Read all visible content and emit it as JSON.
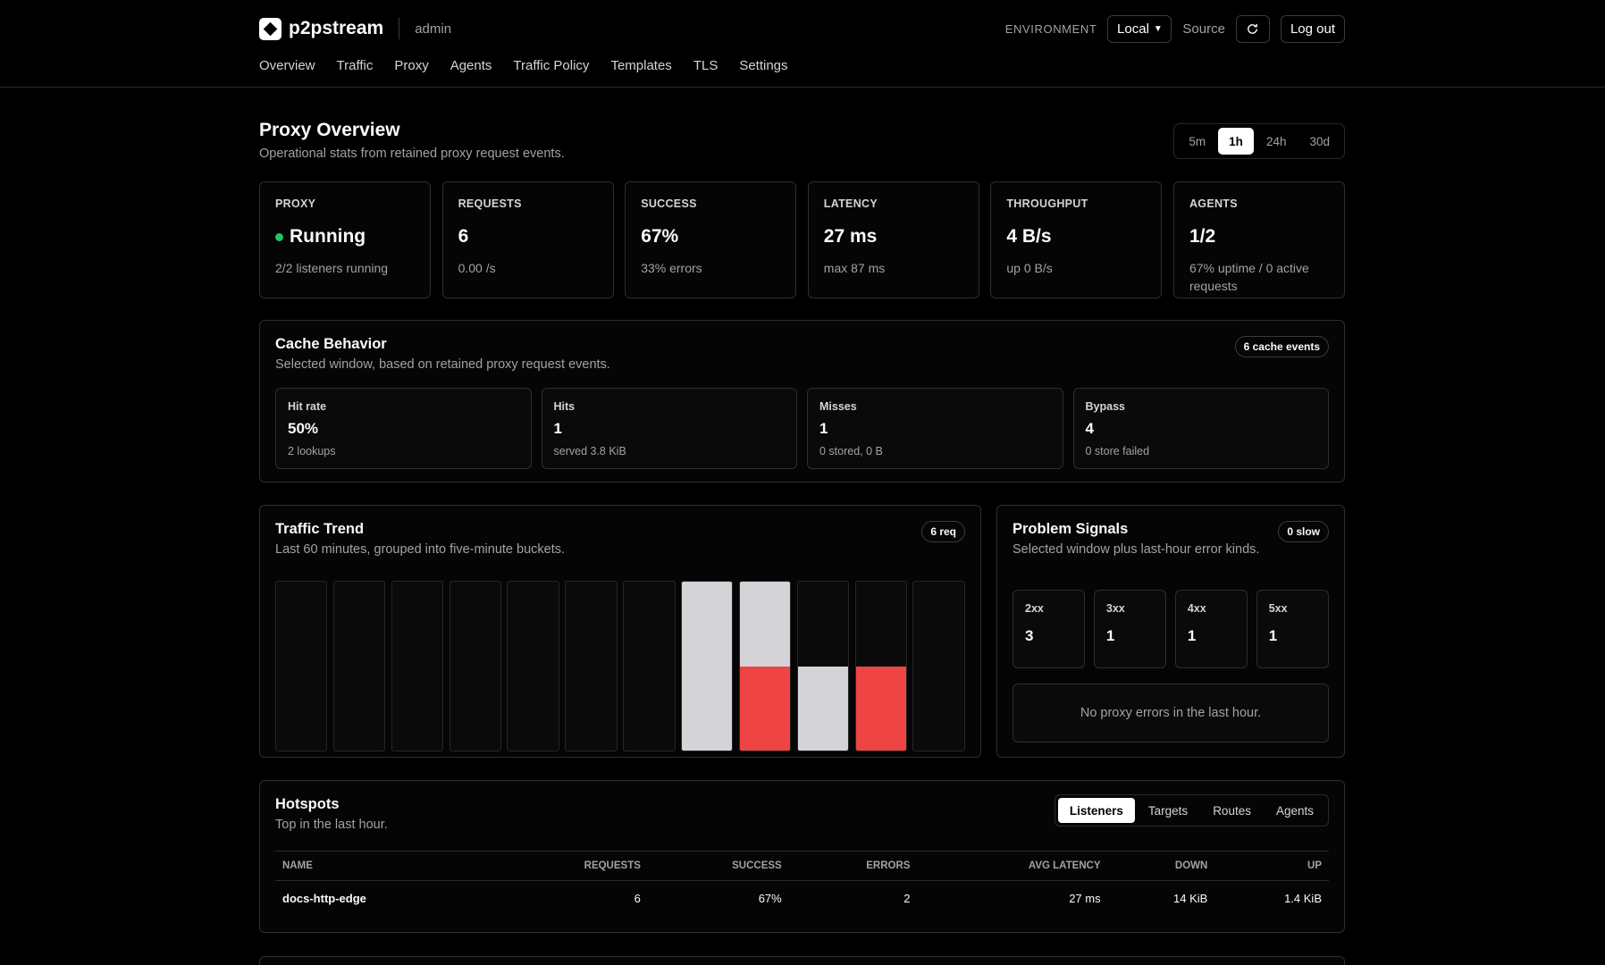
{
  "header": {
    "brand": "p2pstream",
    "user": "admin",
    "environment_label": "ENVIRONMENT",
    "environment": "Local",
    "source": "Source",
    "logout": "Log out"
  },
  "nav": [
    "Overview",
    "Traffic",
    "Proxy",
    "Agents",
    "Traffic Policy",
    "Templates",
    "TLS",
    "Settings"
  ],
  "page": {
    "title": "Proxy Overview",
    "subtitle": "Operational stats from retained proxy request events.",
    "ranges": [
      "5m",
      "1h",
      "24h",
      "30d"
    ]
  },
  "stats": [
    {
      "label": "PROXY",
      "value": "Running",
      "note": "2/2 listeners running"
    },
    {
      "label": "REQUESTS",
      "value": 6,
      "note": "0.00 /s"
    },
    {
      "label": "SUCCESS",
      "value": "67%",
      "note": "33% errors"
    },
    {
      "label": "LATENCY",
      "value": "27 ms",
      "note": "max 87 ms"
    },
    {
      "label": "THROUGHPUT",
      "value": "4 B/s",
      "note": "up 0 B/s"
    },
    {
      "label": "AGENTS",
      "value": "1/2",
      "note": "67% uptime / 0 active requests"
    }
  ],
  "cache": {
    "title": "Cache Behavior",
    "subtitle": "Selected window, based on retained proxy request events.",
    "badge": "6 cache events",
    "cards": [
      {
        "label": "Hit rate",
        "value": "50%",
        "note": "2 lookups"
      },
      {
        "label": "Hits",
        "value": 1,
        "note": "served 3.8 KiB"
      },
      {
        "label": "Misses",
        "value": 1,
        "note": "0 stored, 0 B"
      },
      {
        "label": "Bypass",
        "value": 4,
        "note": "0 store failed"
      }
    ]
  },
  "traffic": {
    "title": "Traffic Trend",
    "subtitle": "Last 60 minutes, grouped into five-minute buckets.",
    "badge": "6 req",
    "success": [
      0,
      0,
      0,
      0,
      0,
      0,
      0,
      2,
      1,
      1,
      0,
      0
    ],
    "errors": [
      0,
      0,
      0,
      0,
      0,
      0,
      0,
      0,
      1,
      0,
      1,
      0
    ]
  },
  "signals": {
    "title": "Problem Signals",
    "subtitle": "Selected window plus last-hour error kinds.",
    "badge": "0 slow",
    "codes": [
      {
        "label": "2xx",
        "value": 3
      },
      {
        "label": "3xx",
        "value": 1
      },
      {
        "label": "4xx",
        "value": 1
      },
      {
        "label": "5xx",
        "value": 1
      }
    ],
    "empty": "No proxy errors in the last hour."
  },
  "hotspots": {
    "title": "Hotspots",
    "subtitle": "Top in the last hour.",
    "tabs": [
      "Listeners",
      "Targets",
      "Routes",
      "Agents"
    ],
    "columns": [
      "NAME",
      "REQUESTS",
      "SUCCESS",
      "ERRORS",
      "AVG LATENCY",
      "DOWN",
      "UP"
    ],
    "rows": [
      [
        "docs-http-edge",
        6,
        "67%",
        2,
        "27 ms",
        "14 KiB",
        "1.4 KiB"
      ]
    ]
  }
}
